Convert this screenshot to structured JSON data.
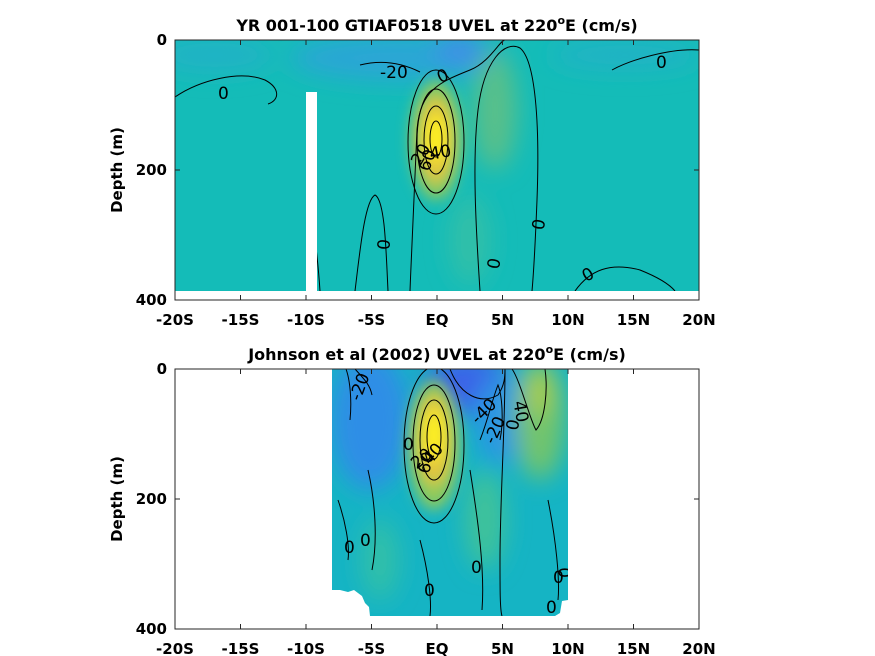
{
  "chart_data": [
    {
      "type": "heatmap",
      "title": "YR 001-100 GTIAF0518 UVEL at 220",
      "title_sup": "o",
      "title_tail": "E (cm/s)",
      "xlabel": "",
      "ylabel": "Depth (m)",
      "xlim": [
        -20,
        20
      ],
      "ylim": [
        400,
        0
      ],
      "x_ticks": [
        "-20S",
        "-15S",
        "-10S",
        "-5S",
        "EQ",
        "5N",
        "10N",
        "15N",
        "20N"
      ],
      "y_ticks": [
        "0",
        "200",
        "400"
      ],
      "contour_labels": [
        "-20",
        "0",
        "0",
        "20",
        "40",
        "60",
        "0",
        "0",
        "0",
        "0",
        "0"
      ],
      "features": [
        {
          "kind": "core",
          "lat": 0.0,
          "depth": 150,
          "value": 60
        },
        {
          "kind": "core",
          "lat": 4.0,
          "depth": 90,
          "value": 20
        },
        {
          "kind": "core",
          "lat": -3.0,
          "depth": 20,
          "value": -30
        },
        {
          "kind": "no-data-strip",
          "lat": -10.0,
          "depth_from": 85,
          "depth_to": 400
        }
      ]
    },
    {
      "type": "heatmap",
      "title": "Johnson et al (2002) UVEL at 220",
      "title_sup": "o",
      "title_tail": "E (cm/s)",
      "xlabel": "",
      "ylabel": "Depth (m)",
      "xlim": [
        -20,
        20
      ],
      "ylim": [
        400,
        0
      ],
      "x_ticks": [
        "-20S",
        "-15S",
        "-10S",
        "-5S",
        "EQ",
        "5N",
        "10N",
        "15N",
        "20N"
      ],
      "y_ticks": [
        "0",
        "200",
        "400"
      ],
      "data_lat_range": [
        -8,
        10
      ],
      "contour_labels": [
        "-20",
        "-40",
        "-20",
        "0",
        "40",
        "0",
        "20",
        "40",
        "60",
        "0",
        "0",
        "0",
        "0",
        "0",
        "0",
        "0"
      ],
      "features": [
        {
          "kind": "core",
          "lat": 0.0,
          "depth": 110,
          "value": 80
        },
        {
          "kind": "core",
          "lat": 8.0,
          "depth": 60,
          "value": 40
        },
        {
          "kind": "core",
          "lat": 2.5,
          "depth": 20,
          "value": -50
        },
        {
          "kind": "core",
          "lat": -5.0,
          "depth": 80,
          "value": -20
        }
      ]
    }
  ]
}
